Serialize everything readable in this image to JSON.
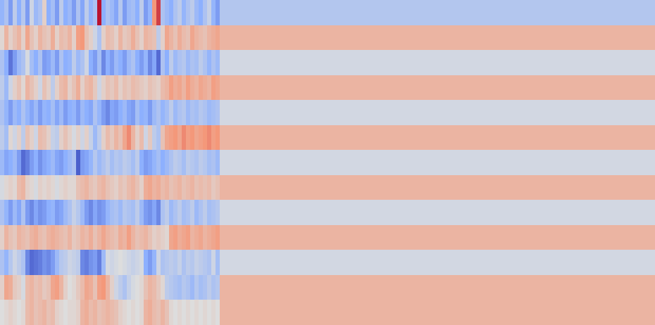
{
  "chart_data": {
    "type": "heatmap",
    "title": "",
    "xlabel": "",
    "ylabel": "",
    "colormap": "coolwarm",
    "colormap_stops": [
      "#3b4cc0",
      "#8db0fe",
      "#dddddd",
      "#f4987a",
      "#b40426"
    ],
    "value_range": [
      -1,
      1
    ],
    "n_rows": 13,
    "n_columns": 155,
    "n_active_columns": 52,
    "trailing_row_values": [
      -0.26,
      0.3,
      -0.07,
      0.3,
      -0.07,
      0.3,
      -0.07,
      0.3,
      -0.07,
      0.3,
      -0.07,
      0.3,
      0.3
    ],
    "active_row_values": [
      [
        -0.45,
        -0.3,
        -0.6,
        -0.2,
        -0.5,
        -0.25,
        -0.6,
        -0.1,
        -0.4,
        -0.3,
        0.1,
        -0.5,
        -0.35,
        -0.6,
        -0.2,
        -0.5,
        -0.4,
        -0.6,
        -0.3,
        -0.55,
        -0.2,
        -0.45,
        -0.3,
        0.95,
        -0.5,
        -0.3,
        -0.4,
        -0.55,
        -0.25,
        -0.6,
        -0.4,
        -0.35,
        -0.5,
        -0.2,
        -0.6,
        -0.45,
        0.5,
        0.8,
        -0.3,
        -0.4,
        -0.5,
        -0.3,
        -0.2,
        -0.45,
        -0.3,
        -0.2,
        -0.4,
        -0.5,
        -0.3,
        -0.15,
        -0.45,
        -0.6
      ],
      [
        0.05,
        0.3,
        0.1,
        0.2,
        0.3,
        0.1,
        0.4,
        0.2,
        0.1,
        0.3,
        0.2,
        0.15,
        0.35,
        0.1,
        0.25,
        0.2,
        0.3,
        0.1,
        0.45,
        0.5,
        0.2,
        0.1,
        -0.1,
        -0.3,
        0.1,
        0.25,
        0.2,
        0.1,
        0.3,
        0.15,
        0.2,
        0.35,
        0.2,
        0.1,
        0.3,
        0.25,
        0.2,
        -0.2,
        0.1,
        0.4,
        0.3,
        0.2,
        0.35,
        0.25,
        0.2,
        0.4,
        0.3,
        0.25,
        0.2,
        0.3,
        0.35,
        0.4
      ],
      [
        -0.3,
        -0.5,
        -0.8,
        -0.6,
        -0.4,
        -0.3,
        -0.05,
        -0.35,
        -0.5,
        -0.3,
        -0.6,
        -0.55,
        -0.4,
        -0.6,
        -0.3,
        -0.5,
        -0.45,
        -0.2,
        -0.4,
        -0.3,
        -0.1,
        -0.5,
        -0.6,
        -0.35,
        -0.7,
        -0.5,
        -0.6,
        -0.4,
        -0.5,
        -0.6,
        -0.4,
        -0.3,
        -0.5,
        -0.6,
        -0.45,
        -0.7,
        -0.55,
        -0.85,
        -0.3,
        -0.5,
        -0.2,
        -0.4,
        -0.3,
        -0.25,
        -0.4,
        -0.3,
        -0.35,
        -0.2,
        -0.3,
        -0.45,
        -0.3,
        -0.4
      ],
      [
        -0.2,
        -0.4,
        -0.1,
        0.1,
        0.2,
        0.05,
        0.3,
        0.2,
        0.1,
        -0.1,
        0.2,
        0.1,
        -0.2,
        0.1,
        0.25,
        0.3,
        0.1,
        0.2,
        0.35,
        0.1,
        0.25,
        0.3,
        0.15,
        -0.1,
        0.1,
        0.2,
        0.15,
        0.25,
        0.1,
        0.2,
        0.15,
        0.25,
        0.2,
        0.15,
        0.1,
        0.2,
        0.15,
        0.1,
        0.25,
        0.3,
        0.45,
        0.35,
        0.4,
        0.3,
        0.45,
        0.35,
        0.3,
        0.4,
        0.35,
        0.3,
        0.45,
        0.4
      ],
      [
        -0.3,
        -0.45,
        -0.6,
        -0.4,
        -0.5,
        -0.3,
        -0.45,
        -0.55,
        -0.4,
        -0.6,
        -0.45,
        -0.5,
        -0.35,
        -0.55,
        -0.4,
        -0.6,
        -0.5,
        -0.45,
        -0.6,
        -0.4,
        -0.5,
        -0.55,
        -0.3,
        -0.45,
        -0.6,
        -0.7,
        -0.55,
        -0.6,
        -0.5,
        -0.4,
        -0.55,
        -0.6,
        -0.35,
        -0.5,
        -0.45,
        -0.6,
        -0.4,
        -0.3,
        -0.45,
        -0.35,
        -0.2,
        -0.4,
        -0.3,
        -0.25,
        -0.4,
        -0.3,
        -0.35,
        -0.25,
        -0.3,
        -0.4,
        -0.35,
        -0.3
      ],
      [
        -0.2,
        -0.35,
        0.05,
        -0.1,
        0.1,
        -0.2,
        0.2,
        0.1,
        -0.1,
        0.25,
        0.2,
        0.1,
        -0.15,
        -0.2,
        0.1,
        0.2,
        0.1,
        -0.05,
        0.1,
        -0.1,
        0.1,
        -0.15,
        -0.4,
        -0.2,
        0.1,
        0.25,
        0.15,
        0.3,
        0.2,
        0.4,
        0.55,
        0.3,
        0.1,
        0.25,
        -0.1,
        0.15,
        -0.2,
        -0.3,
        0.2,
        0.4,
        0.45,
        0.5,
        0.4,
        0.55,
        0.45,
        0.5,
        0.4,
        0.45,
        0.5,
        0.55,
        0.45,
        0.5
      ],
      [
        -0.4,
        -0.55,
        -0.5,
        -0.4,
        -0.6,
        -0.85,
        -0.75,
        -0.6,
        -0.5,
        -0.65,
        -0.55,
        -0.5,
        -0.4,
        -0.55,
        -0.6,
        -0.5,
        -0.4,
        -0.3,
        -0.9,
        -0.6,
        -0.55,
        -0.45,
        -0.25,
        -0.4,
        -0.3,
        -0.2,
        -0.35,
        -0.25,
        -0.3,
        -0.2,
        -0.25,
        -0.35,
        -0.2,
        -0.5,
        -0.6,
        -0.55,
        -0.45,
        -0.35,
        -0.5,
        -0.4,
        -0.3,
        -0.2,
        -0.25,
        -0.35,
        -0.2,
        -0.25,
        -0.3,
        -0.2,
        -0.25,
        -0.35,
        -0.3,
        -0.4
      ],
      [
        -0.05,
        0.05,
        0.1,
        0.05,
        0.25,
        0.3,
        0.1,
        0.05,
        -0.05,
        0.1,
        0.05,
        0.1,
        0.05,
        -0.05,
        0.05,
        0.1,
        0.05,
        0.05,
        0.2,
        0.25,
        0.3,
        0.2,
        0.15,
        0.25,
        0.3,
        0.2,
        0.15,
        0.1,
        0.2,
        0.15,
        0.25,
        0.3,
        0.2,
        0.1,
        0.35,
        0.4,
        0.3,
        0.35,
        0.25,
        0.3,
        0.2,
        0.25,
        0.3,
        0.2,
        0.25,
        0.3,
        0.2,
        0.25,
        0.2,
        0.25,
        0.15,
        0.2
      ],
      [
        -0.3,
        -0.45,
        -0.6,
        -0.4,
        -0.55,
        -0.3,
        -0.6,
        -0.7,
        -0.55,
        -0.65,
        -0.6,
        -0.5,
        -0.45,
        -0.6,
        -0.55,
        -0.4,
        -0.3,
        -0.15,
        -0.25,
        -0.4,
        -0.6,
        -0.7,
        -0.55,
        -0.65,
        -0.6,
        -0.45,
        -0.35,
        -0.3,
        -0.4,
        -0.25,
        -0.3,
        -0.35,
        -0.2,
        -0.4,
        -0.6,
        -0.65,
        -0.55,
        -0.7,
        -0.3,
        -0.2,
        -0.4,
        -0.3,
        -0.2,
        -0.35,
        -0.3,
        -0.2,
        -0.4,
        -0.3,
        -0.2,
        -0.35,
        -0.3,
        -0.25
      ],
      [
        0.1,
        0.3,
        0.2,
        0.15,
        0.3,
        0.25,
        0.2,
        0.3,
        0.35,
        0.25,
        0.2,
        0.3,
        0.35,
        0.3,
        0.25,
        0.2,
        0.3,
        0.15,
        0.2,
        0.3,
        0.25,
        0.35,
        0.2,
        0.3,
        0.4,
        0.3,
        0.25,
        0.2,
        0.35,
        0.3,
        0.45,
        0.3,
        0.2,
        0.25,
        0.3,
        0.2,
        0.1,
        0.15,
        0.1,
        0.05,
        0.4,
        0.45,
        0.35,
        0.4,
        0.45,
        0.3,
        0.35,
        0.4,
        0.3,
        0.35,
        0.4,
        0.45
      ],
      [
        -0.3,
        -0.45,
        -0.25,
        -0.1,
        -0.2,
        -0.3,
        -0.7,
        -0.85,
        -0.8,
        -0.75,
        -0.65,
        -0.7,
        -0.6,
        -0.4,
        -0.25,
        -0.2,
        -0.1,
        -0.15,
        -0.2,
        -0.7,
        -0.75,
        -0.65,
        -0.6,
        -0.75,
        -0.4,
        -0.05,
        -0.1,
        -0.05,
        0.0,
        -0.05,
        -0.1,
        -0.15,
        -0.1,
        -0.05,
        -0.5,
        -0.6,
        -0.45,
        -0.1,
        -0.3,
        -0.25,
        -0.2,
        -0.25,
        -0.15,
        -0.3,
        -0.2,
        -0.25,
        -0.15,
        -0.2,
        -0.25,
        -0.3,
        -0.1,
        -0.35
      ],
      [
        0.1,
        0.4,
        0.35,
        0.15,
        0.1,
        -0.05,
        0.25,
        0.3,
        0.2,
        0.25,
        0.15,
        0.2,
        0.4,
        0.45,
        0.3,
        0.1,
        0.0,
        0.05,
        0.15,
        0.25,
        0.4,
        0.35,
        0.2,
        0.45,
        0.5,
        0.3,
        0.1,
        -0.1,
        -0.2,
        -0.3,
        -0.15,
        -0.05,
        0.0,
        0.05,
        0.2,
        0.3,
        0.25,
        0.15,
        0.05,
        -0.2,
        -0.25,
        -0.3,
        -0.35,
        -0.25,
        -0.3,
        -0.4,
        -0.25,
        -0.35,
        -0.3,
        -0.2,
        -0.3,
        -0.25
      ],
      [
        0.0,
        0.05,
        0.1,
        0.05,
        0.0,
        0.05,
        0.25,
        0.3,
        0.2,
        0.25,
        0.3,
        0.2,
        0.25,
        0.1,
        0.05,
        0.0,
        0.05,
        0.05,
        0.1,
        0.3,
        0.35,
        0.25,
        0.3,
        0.2,
        0.25,
        0.3,
        0.25,
        0.2,
        0.1,
        0.05,
        0.0,
        0.05,
        0.0,
        0.05,
        0.3,
        0.35,
        0.25,
        0.2,
        0.3,
        0.2,
        0.05,
        0.0,
        0.05,
        0.0,
        0.05,
        0.0,
        0.05,
        0.0,
        0.05,
        0.0,
        0.05,
        0.0
      ]
    ]
  }
}
